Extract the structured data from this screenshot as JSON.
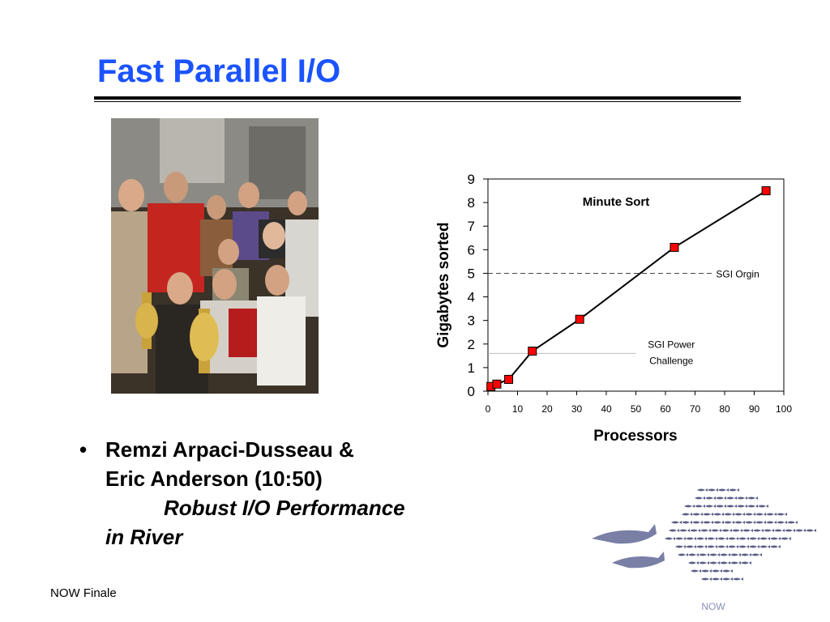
{
  "slide": {
    "title": "Fast Parallel I/O",
    "footer": "NOW Finale"
  },
  "bullet": {
    "marker": "•",
    "line1": "Remzi Arpaci-Dusseau &",
    "line2": "Eric Anderson (10:50)",
    "line3": "Robust I/O Performance",
    "line4": "in River"
  },
  "logo": {
    "text": "NOW",
    "color": "#5a5f86"
  },
  "chart_data": {
    "type": "line",
    "title": "Minute Sort",
    "xlabel": "Processors",
    "ylabel": "Gigabytes sorted",
    "xlim": [
      0,
      100
    ],
    "ylim": [
      0,
      9
    ],
    "xticks": [
      "0",
      "10",
      "20",
      "30",
      "40",
      "50",
      "60",
      "70",
      "80",
      "90",
      "100"
    ],
    "yticks": [
      "0",
      "1",
      "2",
      "3",
      "4",
      "5",
      "6",
      "7",
      "8",
      "9"
    ],
    "x": [
      1,
      3,
      7,
      15,
      31,
      63,
      94
    ],
    "y": [
      0.2,
      0.3,
      0.5,
      1.7,
      3.05,
      6.1,
      8.5
    ],
    "marker_color": "#ff0000",
    "line_color": "#000000",
    "references": [
      {
        "label": "SGI Orgin",
        "y": 5,
        "x_end": 76,
        "style": "dashed"
      },
      {
        "label_lines": [
          "SGI Power",
          "Challenge"
        ],
        "y": 1.6,
        "x_end": 50,
        "style": "solid"
      }
    ],
    "grid": false
  }
}
